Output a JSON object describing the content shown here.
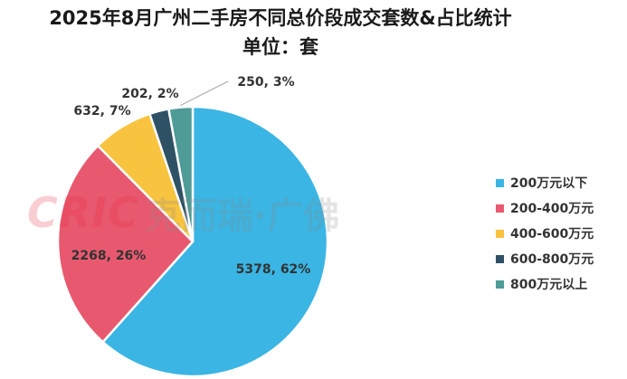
{
  "title": "2025年8月广州二手房不同总价段成交套数&占比统计",
  "subtitle": "单位：套",
  "watermark": {
    "logo": "CRIC",
    "text": "克而瑞·广佛"
  },
  "chart_data": {
    "type": "pie",
    "title": "2025年8月广州二手房不同总价段成交套数&占比统计",
    "subtitle": "单位：套",
    "legend_position": "right",
    "slices": [
      {
        "category": "200万元以下",
        "value": 5378,
        "percent": 62,
        "label": "5378, 62%",
        "color": "#3ab5e4"
      },
      {
        "category": "200-400万元",
        "value": 2268,
        "percent": 26,
        "label": "2268, 26%",
        "color": "#e8596f"
      },
      {
        "category": "400-600万元",
        "value": 632,
        "percent": 7,
        "label": "632, 7%",
        "color": "#f8c33e"
      },
      {
        "category": "600-800万元",
        "value": 202,
        "percent": 2,
        "label": "202, 2%",
        "color": "#2f5166"
      },
      {
        "category": "800万元以上",
        "value": 250,
        "percent": 3,
        "label": "250, 3%",
        "color": "#4e9b97"
      }
    ]
  }
}
